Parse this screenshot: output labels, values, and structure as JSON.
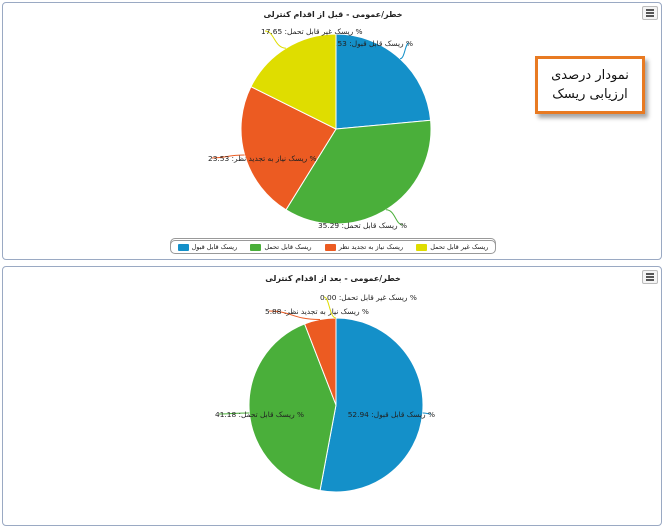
{
  "colors": {
    "accepted": "#1490c9",
    "tolerable": "#4aaf3a",
    "needs_review": "#ec5b22",
    "intolerable": "#dfdd00"
  },
  "legend": {
    "accepted": "ریسک قابل قبول",
    "tolerable": "ریسک قابل تحمل",
    "needs_review": "ریسک نیاز به تجدید نظر",
    "intolerable": "ریسک غیر قابل تحمل"
  },
  "note": {
    "line1": "نمودار درصدی",
    "line2": "ارزیابی ریسک"
  },
  "chart_data": [
    {
      "type": "pie",
      "title": "خطر/عمومی - قبل از اقدام کنترلی",
      "legend_position": "bottom",
      "series": [
        {
          "slices": [
            {
              "key": "accepted",
              "label": "% ریسک قابل قبول: 23.53",
              "value": 23.53
            },
            {
              "key": "tolerable",
              "label": "% ریسک قابل تحمل: 35.29",
              "value": 35.29
            },
            {
              "key": "needs_review",
              "label": "% ریسک نیاز به تجدید نظر: 23.53",
              "value": 23.53
            },
            {
              "key": "intolerable",
              "label": "% ریسک غیر قابل تحمل: 17.65",
              "value": 17.65
            }
          ]
        }
      ]
    },
    {
      "type": "pie",
      "title": "خطر/عمومی - بعد از اقدام کنترلی",
      "legend_position": "bottom",
      "series": [
        {
          "slices": [
            {
              "key": "accepted",
              "label": "% ریسک قابل قبول: 52.94",
              "value": 52.94
            },
            {
              "key": "tolerable",
              "label": "% ریسک قابل تحمل: 41.18",
              "value": 41.18
            },
            {
              "key": "needs_review",
              "label": "% ریسک نیاز به تجدید نظر: 5.88",
              "value": 5.88
            },
            {
              "key": "intolerable",
              "label": "% ریسک غیر قابل تحمل: 0.00",
              "value": 0.0
            }
          ]
        }
      ]
    }
  ]
}
